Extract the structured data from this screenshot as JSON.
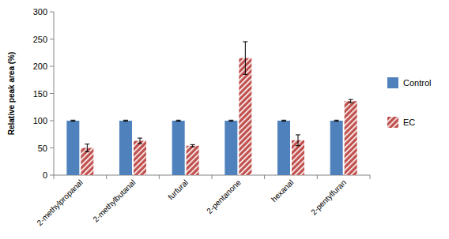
{
  "chart_data": {
    "type": "bar",
    "ylabel": "Relative peak area (%)",
    "categories": [
      "2-methylpropanal",
      "2-methylbutanal",
      "furfural",
      "2-pentanone",
      "hexanal",
      "2-pentylfuran"
    ],
    "series": [
      {
        "name": "Control",
        "color": "#4f81bd",
        "values": [
          100,
          100,
          100,
          100,
          100,
          100
        ],
        "errors": [
          1,
          1,
          1,
          1,
          1,
          1
        ]
      },
      {
        "name": "EC",
        "color": "#c0504d",
        "values": [
          50,
          63,
          54,
          215,
          64,
          136
        ],
        "errors": [
          7,
          5,
          2,
          30,
          10,
          3
        ]
      }
    ],
    "ylim": [
      0,
      300
    ],
    "yticks": [
      0,
      50,
      100,
      150,
      200,
      250,
      300
    ],
    "grid": false,
    "legend": "right"
  }
}
